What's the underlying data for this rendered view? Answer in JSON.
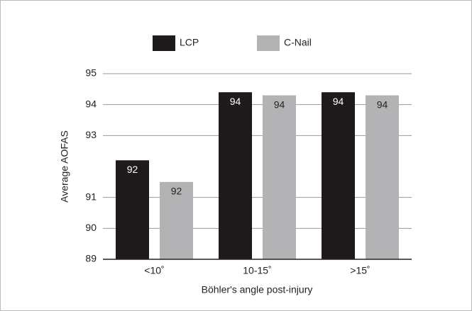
{
  "chart_data": {
    "type": "bar",
    "categories": [
      "<10˚",
      "10-15˚",
      ">15˚"
    ],
    "series": [
      {
        "name": "LCP",
        "color": "#1e1a1b",
        "label_color": "#ffffff",
        "values": [
          92.2,
          94.4,
          94.4
        ],
        "value_labels": [
          "92",
          "94",
          "94"
        ]
      },
      {
        "name": "C-Nail",
        "color": "#b3b3b5",
        "label_color": "#222222",
        "values": [
          91.5,
          94.3,
          94.3
        ],
        "value_labels": [
          "92",
          "94",
          "94"
        ]
      }
    ],
    "ylabel": "Average AOFAS",
    "xlabel": "Böhler's angle post-injury",
    "ylim": [
      89,
      95
    ],
    "yticks": [
      89,
      90,
      91,
      93,
      94,
      95
    ],
    "grid": true,
    "legend": "top"
  }
}
